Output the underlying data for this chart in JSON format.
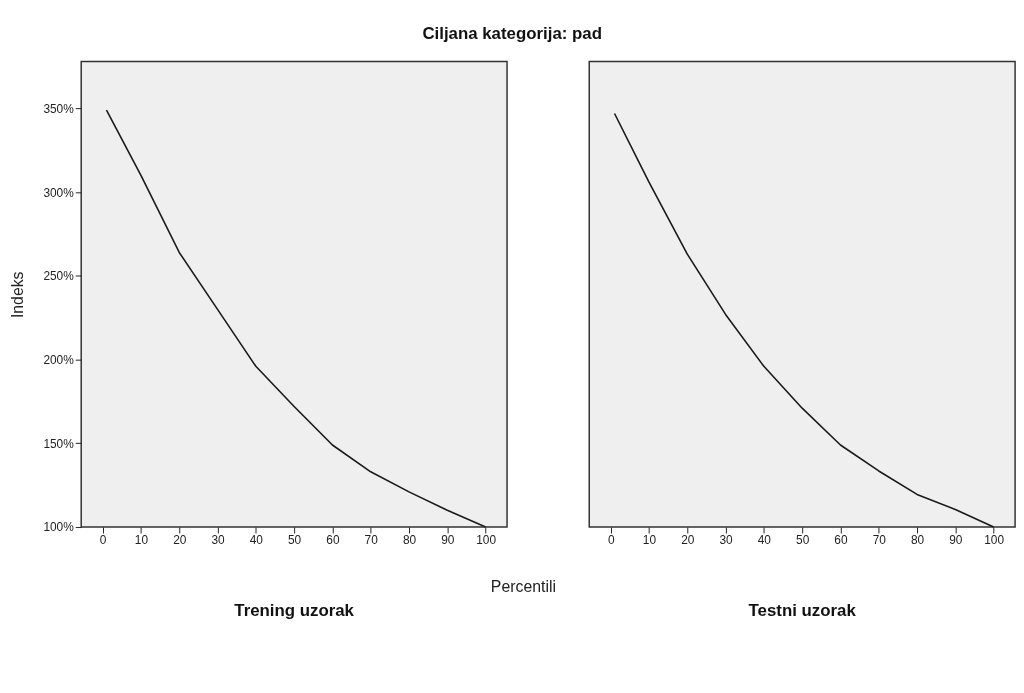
{
  "chart_data": [
    {
      "type": "line",
      "title": "Ciljana kategorija: pad",
      "subtitle": "Trening uzorak",
      "xlabel": "Percentili",
      "ylabel": "Indeks",
      "x": [
        1,
        10,
        20,
        30,
        40,
        50,
        60,
        70,
        80,
        90,
        100
      ],
      "series": [
        {
          "color": "#1a1a1a",
          "values": [
            349,
            310,
            264,
            230,
            196,
            172,
            149,
            133,
            121,
            110,
            100
          ]
        }
      ],
      "xlim": [
        -5.6,
        105.6
      ],
      "xticks": [
        0,
        10,
        20,
        30,
        40,
        50,
        60,
        70,
        80,
        90,
        100
      ],
      "ylim": [
        100,
        378
      ],
      "yticks": [
        {
          "value": 100,
          "label": "100%"
        },
        {
          "value": 150,
          "label": "150%"
        },
        {
          "value": 200,
          "label": "200%"
        },
        {
          "value": 250,
          "label": "250%"
        },
        {
          "value": 300,
          "label": "300%"
        },
        {
          "value": 350,
          "label": "350%"
        }
      ],
      "grid": false,
      "legend": false,
      "marker": "none",
      "line_style": "solid"
    },
    {
      "type": "line",
      "subtitle": "Testni uzorak",
      "x": [
        1,
        10,
        20,
        30,
        40,
        50,
        60,
        70,
        80,
        90,
        100
      ],
      "series": [
        {
          "color": "#1a1a1a",
          "values": [
            347,
            306,
            263,
            227,
            196,
            171,
            149,
            133.5,
            119.5,
            110.5,
            100
          ]
        }
      ],
      "xlim": [
        -5.6,
        105.6
      ],
      "xticks": [
        0,
        10,
        20,
        30,
        40,
        50,
        60,
        70,
        80,
        90,
        100
      ],
      "ylim": [
        100,
        378
      ],
      "grid": false,
      "legend": false,
      "marker": "none",
      "line_style": "solid",
      "tick_labels": "x"
    }
  ]
}
